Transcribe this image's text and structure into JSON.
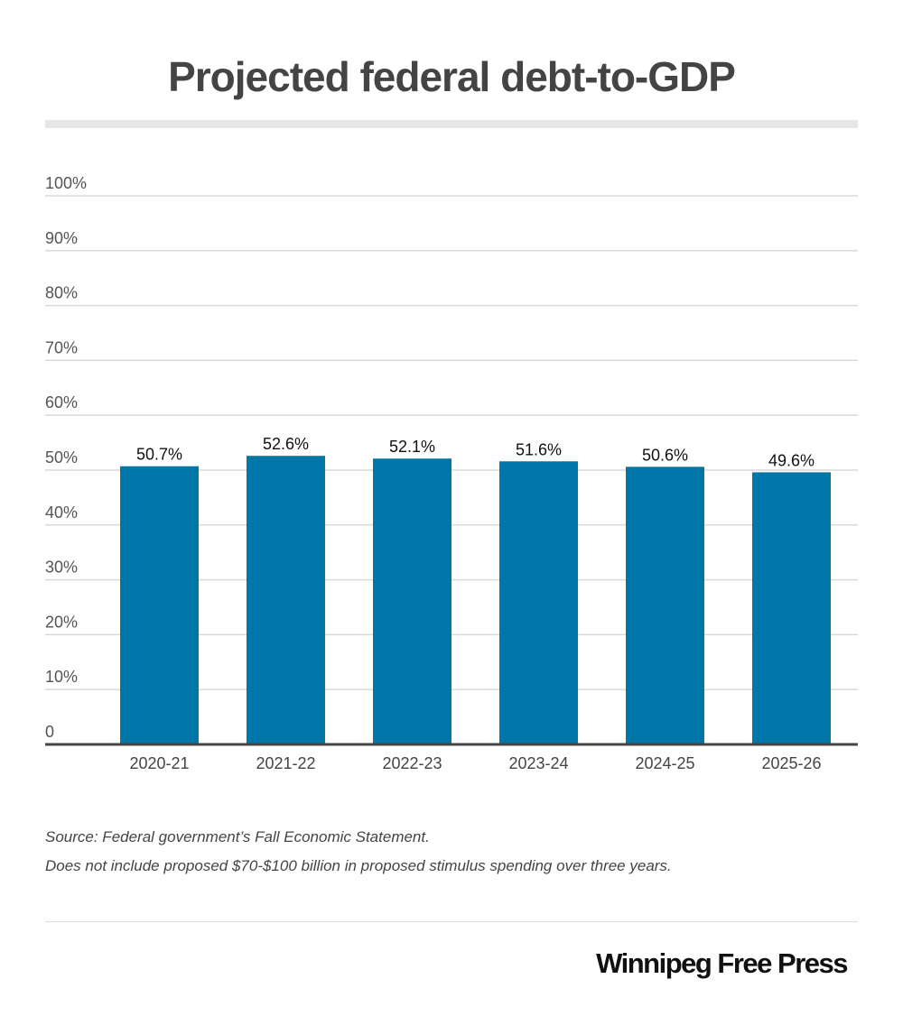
{
  "chart_data": {
    "type": "bar",
    "title": "Projected federal debt-to-GDP",
    "xlabel": "",
    "ylabel": "",
    "categories": [
      "2020-21",
      "2021-22",
      "2022-23",
      "2023-24",
      "2024-25",
      "2025-26"
    ],
    "values": [
      50.7,
      52.6,
      52.1,
      51.6,
      50.6,
      49.6
    ],
    "value_labels": [
      "50.7%",
      "52.6%",
      "52.1%",
      "51.6%",
      "50.6%",
      "49.6%"
    ],
    "ylim": [
      0,
      100
    ],
    "yticks": [
      0,
      10,
      20,
      30,
      40,
      50,
      60,
      70,
      80,
      90,
      100
    ],
    "ytick_labels": [
      "0",
      "10%",
      "20%",
      "30%",
      "40%",
      "50%",
      "60%",
      "70%",
      "80%",
      "90%",
      "100%"
    ],
    "grid": true,
    "bar_color": "#0077a8",
    "legend": "none"
  },
  "notes": {
    "source": "Source: Federal government’s Fall Economic Statement.",
    "note": "Does not include proposed $70-$100 billion in proposed stimulus spending over three years."
  },
  "branding": {
    "logo_text": "Winnipeg Free Press"
  }
}
